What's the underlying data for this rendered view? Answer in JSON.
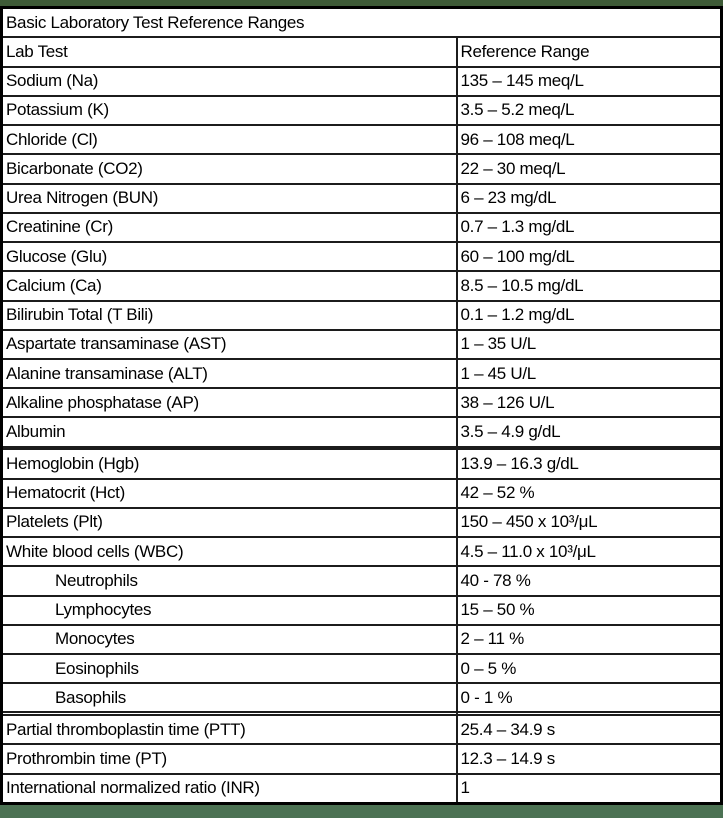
{
  "page": {
    "top_bar_color": "#3e5b37",
    "bottom_bar_color": "#4c7253",
    "grid_color": "#1c1c1c"
  },
  "table": {
    "title": "Basic Laboratory Test Reference Ranges",
    "columns": {
      "lab_test": "Lab Test",
      "reference_range": "Reference Range"
    },
    "rows": [
      {
        "test": "Sodium (Na)",
        "range": "135 – 145 meq/L"
      },
      {
        "test": "Potassium (K)",
        "range": "3.5 – 5.2 meq/L"
      },
      {
        "test": "Chloride (Cl)",
        "range": "96 – 108 meq/L"
      },
      {
        "test": "Bicarbonate (CO2)",
        "range": "22 – 30 meq/L"
      },
      {
        "test": "Urea Nitrogen (BUN)",
        "range": "6 – 23 mg/dL"
      },
      {
        "test": "Creatinine (Cr)",
        "range": "0.7 – 1.3 mg/dL"
      },
      {
        "test": "Glucose (Glu)",
        "range": "60 – 100 mg/dL"
      },
      {
        "test": "Calcium (Ca)",
        "range": "8.5 – 10.5 mg/dL"
      },
      {
        "test": "Bilirubin Total (T Bili)",
        "range": "0.1 – 1.2 mg/dL"
      },
      {
        "test": "Aspartate transaminase (AST)",
        "range": "1 – 35 U/L"
      },
      {
        "test": "Alanine transaminase (ALT)",
        "range": "1 – 45 U/L"
      },
      {
        "test": "Alkaline phosphatase (AP)",
        "range": "38 – 126 U/L"
      },
      {
        "test": "Albumin",
        "range": "3.5 – 4.9 g/dL"
      },
      {
        "test": "",
        "range": "",
        "blank": true
      },
      {
        "test": "Hemoglobin (Hgb)",
        "range": "13.9 – 16.3 g/dL"
      },
      {
        "test": "Hematocrit (Hct)",
        "range": "42 – 52 %"
      },
      {
        "test": "Platelets (Plt)",
        "range": "150 – 450 x 10³/μL"
      },
      {
        "test": "White blood cells (WBC)",
        "range": "4.5 – 11.0 x 10³/μL"
      },
      {
        "test": "Neutrophils",
        "range": "40 - 78 %",
        "indent": true
      },
      {
        "test": "Lymphocytes",
        "range": "15 – 50 %",
        "indent": true
      },
      {
        "test": "Monocytes",
        "range": "2 – 11 %",
        "indent": true
      },
      {
        "test": "Eosinophils",
        "range": "0 – 5 %",
        "indent": true
      },
      {
        "test": "Basophils",
        "range": "0 - 1 %",
        "indent": true
      },
      {
        "test": "",
        "range": "",
        "blank": true
      },
      {
        "test": "Partial thromboplastin time (PTT)",
        "range": "25.4 – 34.9 s"
      },
      {
        "test": "Prothrombin time (PT)",
        "range": "12.3 – 14.9 s"
      },
      {
        "test": "International normalized ratio (INR)",
        "range": "1"
      }
    ]
  }
}
